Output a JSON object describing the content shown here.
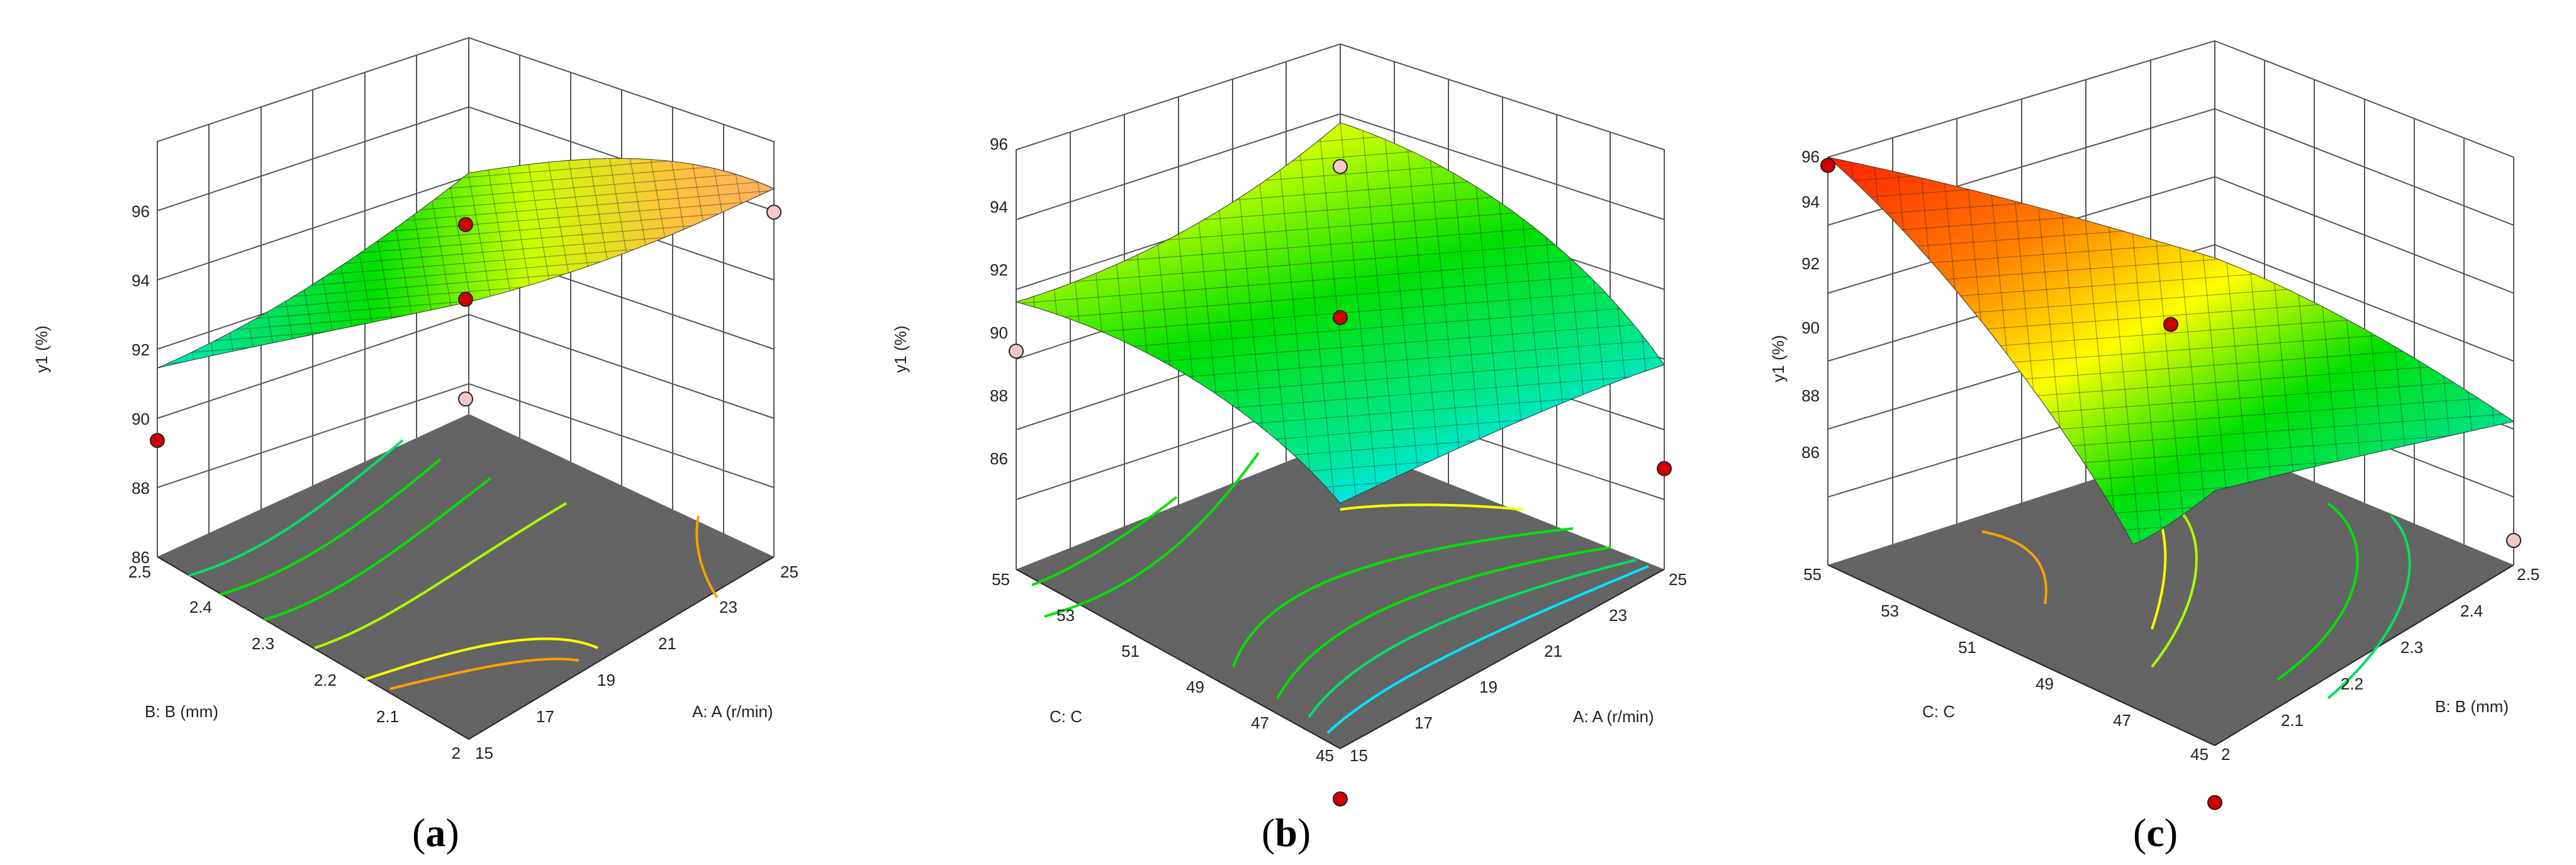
{
  "figure": {
    "captions": [
      "(a)",
      "(b)",
      "(c)"
    ],
    "caption_letters": [
      "a",
      "b",
      "c"
    ]
  },
  "chart_data": [
    {
      "type": "surface",
      "panel": "(a)",
      "zlabel": "y1 (%)",
      "xlabel": "A: A (r/min)",
      "ylabel": "B: B (mm)",
      "z_ticks": [
        "86",
        "88",
        "90",
        "92",
        "94",
        "96"
      ],
      "x_ticks": [
        "15",
        "17",
        "19",
        "21",
        "23",
        "25"
      ],
      "y_ticks": [
        "2",
        "2.1",
        "2.2",
        "2.3",
        "2.4",
        "2.5"
      ],
      "xlim": [
        15,
        25
      ],
      "ylim": [
        2,
        2.5
      ],
      "zlim": [
        86,
        96
      ],
      "colormap": [
        "#00e5ff",
        "#00e000",
        "#ffff00",
        "#ff8c00",
        "#ff2000"
      ],
      "floor_color": "#646464",
      "design_points": [
        {
          "x": 15,
          "y": 2.5,
          "z": 88.8,
          "above": true
        },
        {
          "x": 20,
          "y": 2.25,
          "z": 92.2,
          "above": true
        },
        {
          "x": 20,
          "y": 2.25,
          "z": 94.0,
          "above": true
        },
        {
          "x": 20,
          "y": 2.25,
          "z": 89.8,
          "above": false
        },
        {
          "x": 25,
          "y": 2.0,
          "z": 94.3,
          "above": false
        }
      ]
    },
    {
      "type": "surface",
      "panel": "(b)",
      "zlabel": "y1 (%)",
      "xlabel": "A: A (r/min)",
      "ylabel": "C: C",
      "z_ticks": [
        "86",
        "88",
        "90",
        "92",
        "94",
        "96"
      ],
      "x_ticks": [
        "15",
        "17",
        "19",
        "21",
        "23",
        "25"
      ],
      "y_ticks": [
        "45",
        "47",
        "49",
        "51",
        "53",
        "55"
      ],
      "xlim": [
        15,
        25
      ],
      "ylim": [
        45,
        55
      ],
      "zlim": [
        86,
        96
      ],
      "colormap": [
        "#00e5ff",
        "#00e000",
        "#ffff00",
        "#ff8c00",
        "#ff2000"
      ],
      "floor_color": "#646464",
      "design_points": [
        {
          "x": 15,
          "y": 55,
          "z": 91.2,
          "above": false
        },
        {
          "x": 20,
          "y": 50,
          "z": 92.0,
          "above": true
        },
        {
          "x": 20,
          "y": 50,
          "z": 95.6,
          "above": false
        },
        {
          "x": 15,
          "y": 45,
          "z": 84.8,
          "above": true
        },
        {
          "x": 25,
          "y": 45,
          "z": 88.4,
          "above": true
        }
      ]
    },
    {
      "type": "surface",
      "panel": "(c)",
      "zlabel": "y1 (%)",
      "xlabel": "B: B (mm)",
      "ylabel": "C: C",
      "z_ticks": [
        "86",
        "88",
        "90",
        "92",
        "94",
        "96"
      ],
      "x_ticks": [
        "2",
        "2.1",
        "2.2",
        "2.3",
        "2.4",
        "2.5"
      ],
      "y_ticks": [
        "45",
        "47",
        "49",
        "51",
        "53",
        "55"
      ],
      "xlim": [
        2,
        2.5
      ],
      "ylim": [
        45,
        55
      ],
      "zlim": [
        86,
        96
      ],
      "colormap": [
        "#00e5ff",
        "#00e000",
        "#ffff00",
        "#ff8c00",
        "#ff2000"
      ],
      "floor_color": "#646464",
      "design_points": [
        {
          "x": 2,
          "y": 55,
          "z": 95.8,
          "above": true
        },
        {
          "x": 2.25,
          "y": 50,
          "z": 91.9,
          "above": true
        },
        {
          "x": 2,
          "y": 45,
          "z": 84.6,
          "above": true
        },
        {
          "x": 2.5,
          "y": 45,
          "z": 86.6,
          "above": false
        }
      ]
    }
  ]
}
